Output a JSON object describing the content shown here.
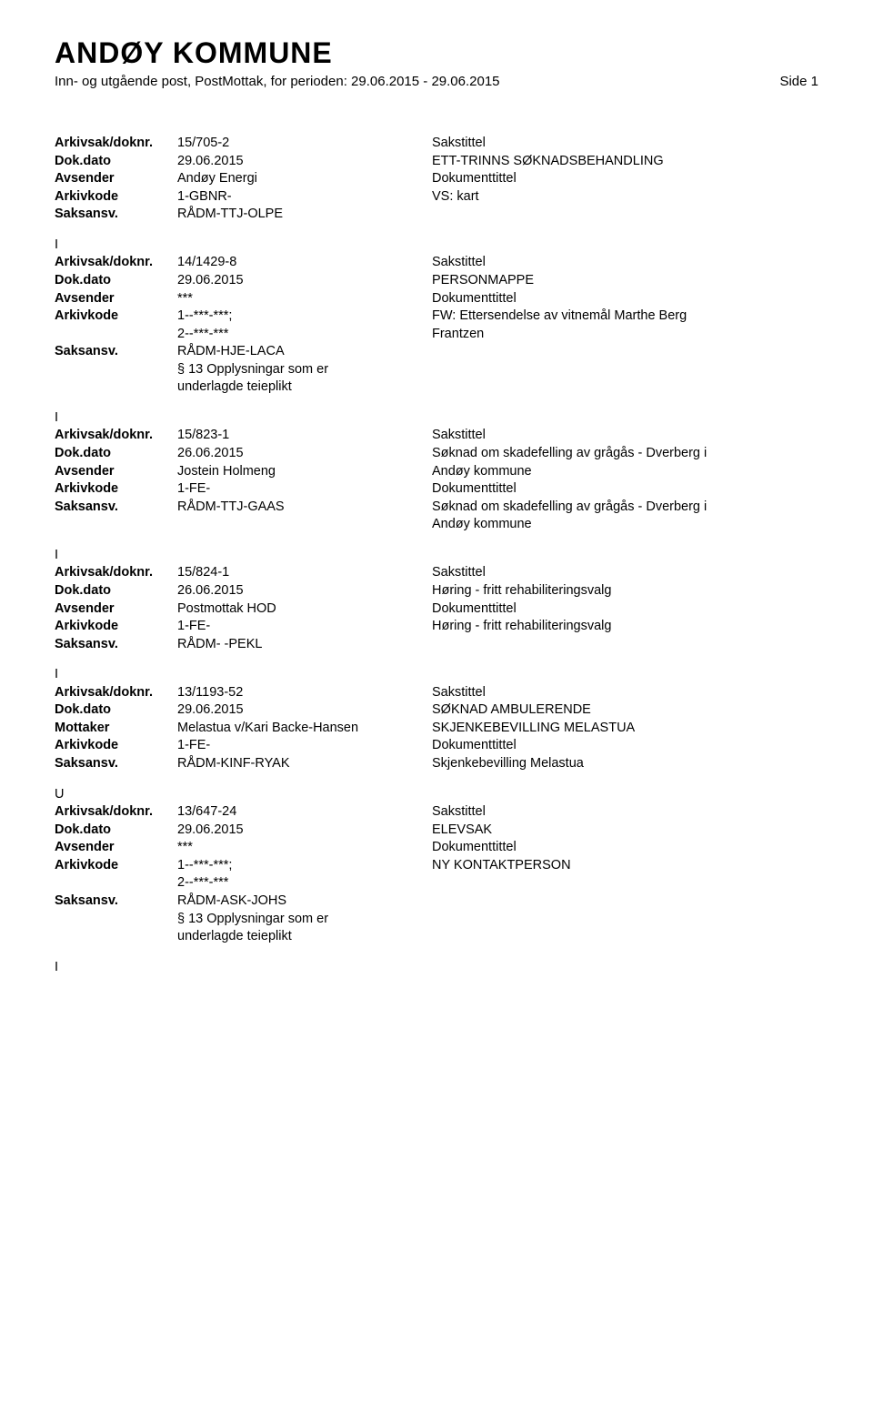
{
  "header": {
    "title": "ANDØY KOMMUNE",
    "subtitle": "Inn- og utgående post, PostMottak, for perioden: 29.06.2015 - 29.06.2015",
    "side": "Side 1"
  },
  "labels": {
    "arkivsak": "Arkivsak/doknr.",
    "dokdato": "Dok.dato",
    "avsender": "Avsender",
    "mottaker": "Mottaker",
    "arkivkode": "Arkivkode",
    "saksansv": "Saksansv.",
    "sakstittel": "Sakstittel",
    "dokumenttittel": "Dokumenttittel"
  },
  "records": [
    {
      "type_marker_before": null,
      "arkivsak": "15/705-2",
      "dokdato": "29.06.2015",
      "party_label": "Avsender",
      "party_value": "Andøy Energi",
      "arkivkode": "1-GBNR-",
      "arkivkode_extra": [],
      "saksansv": "RÅDM-TTJ-OLPE",
      "saksansv_extra": [],
      "sakstittel": "ETT-TRINNS SØKNADSBEHANDLING",
      "sakstittel_extra": [],
      "doktittel": "VS: kart",
      "doktittel_extra": [],
      "type_marker_after": "I"
    },
    {
      "type_marker_before": null,
      "arkivsak": "14/1429-8",
      "dokdato": "29.06.2015",
      "party_label": "Avsender",
      "party_value": "***",
      "arkivkode": "1--***-***;",
      "arkivkode_extra": [
        "2--***-***"
      ],
      "saksansv": "RÅDM-HJE-LACA",
      "saksansv_extra": [
        "§ 13 Opplysningar som er",
        "underlagde teieplikt"
      ],
      "sakstittel": "PERSONMAPPE",
      "sakstittel_extra": [],
      "doktittel": "FW: Ettersendelse av vitnemål Marthe Berg",
      "doktittel_extra": [
        "Frantzen"
      ],
      "type_marker_after": "I"
    },
    {
      "type_marker_before": null,
      "arkivsak": "15/823-1",
      "dokdato": "26.06.2015",
      "party_label": "Avsender",
      "party_value": "Jostein Holmeng",
      "arkivkode": "1-FE-",
      "arkivkode_extra": [],
      "saksansv": "RÅDM-TTJ-GAAS",
      "saksansv_extra": [],
      "sakstittel": "Søknad om skadefelling av grågås - Dverberg i",
      "sakstittel_extra": [
        "Andøy kommune"
      ],
      "doktittel": "Søknad om skadefelling av grågås - Dverberg i",
      "doktittel_extra": [
        "Andøy kommune"
      ],
      "type_marker_after": "I"
    },
    {
      "type_marker_before": null,
      "arkivsak": "15/824-1",
      "dokdato": "26.06.2015",
      "party_label": "Avsender",
      "party_value": "Postmottak HOD",
      "arkivkode": "1-FE-",
      "arkivkode_extra": [],
      "saksansv": "RÅDM- -PEKL",
      "saksansv_extra": [],
      "sakstittel": "Høring - fritt rehabiliteringsvalg",
      "sakstittel_extra": [],
      "doktittel": "Høring - fritt rehabiliteringsvalg",
      "doktittel_extra": [],
      "type_marker_after": "I"
    },
    {
      "type_marker_before": null,
      "arkivsak": "13/1193-52",
      "dokdato": "29.06.2015",
      "party_label": "Mottaker",
      "party_value": "Melastua v/Kari Backe-Hansen",
      "arkivkode": "1-FE-",
      "arkivkode_extra": [],
      "saksansv": "RÅDM-KINF-RYAK",
      "saksansv_extra": [],
      "sakstittel": "SØKNAD AMBULERENDE",
      "sakstittel_extra": [
        "SKJENKEBEVILLING MELASTUA"
      ],
      "doktittel": "Skjenkebevilling Melastua",
      "doktittel_extra": [],
      "type_marker_after": "U"
    },
    {
      "type_marker_before": null,
      "arkivsak": "13/647-24",
      "dokdato": "29.06.2015",
      "party_label": "Avsender",
      "party_value": "***",
      "arkivkode": "1--***-***;",
      "arkivkode_extra": [
        "2--***-***"
      ],
      "saksansv": "RÅDM-ASK-JOHS",
      "saksansv_extra": [
        "§ 13 Opplysningar som er",
        "underlagde teieplikt"
      ],
      "sakstittel": "ELEVSAK",
      "sakstittel_extra": [],
      "doktittel": "NY KONTAKTPERSON",
      "doktittel_extra": [],
      "type_marker_after": "I"
    }
  ]
}
